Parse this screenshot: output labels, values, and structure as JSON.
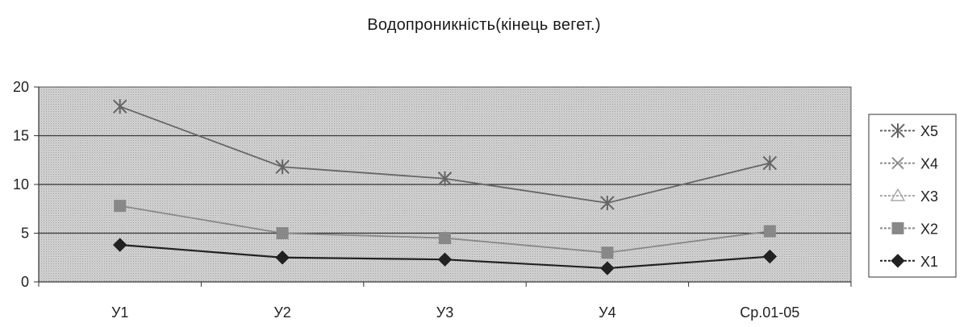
{
  "chart_data": {
    "type": "line",
    "title": "Водопроникність(кінець вегет.)",
    "xlabel": "",
    "ylabel": "",
    "categories": [
      "У1",
      "У2",
      "У3",
      "У4",
      "Ср.01-05"
    ],
    "ylim": [
      0,
      20
    ],
    "yticks": [
      "0",
      "5",
      "10",
      "15",
      "20"
    ],
    "grid": true,
    "legend_position": "right",
    "series": [
      {
        "name": "X5",
        "values": [
          18,
          11.8,
          10.6,
          8.1,
          12.2
        ],
        "color": "#666666",
        "marker": "star"
      },
      {
        "name": "X4",
        "values": [
          null,
          null,
          null,
          3.0,
          null
        ],
        "color": "#8c8c8c",
        "marker": "x"
      },
      {
        "name": "X3",
        "values": [
          null,
          null,
          4.5,
          null,
          null
        ],
        "color": "#aaaaaa",
        "marker": "triangle"
      },
      {
        "name": "X2",
        "values": [
          7.8,
          5.0,
          4.5,
          3.0,
          5.2
        ],
        "color": "#888888",
        "marker": "square"
      },
      {
        "name": "X1",
        "values": [
          3.8,
          2.5,
          2.3,
          1.4,
          2.6
        ],
        "color": "#222222",
        "marker": "diamond"
      }
    ]
  }
}
